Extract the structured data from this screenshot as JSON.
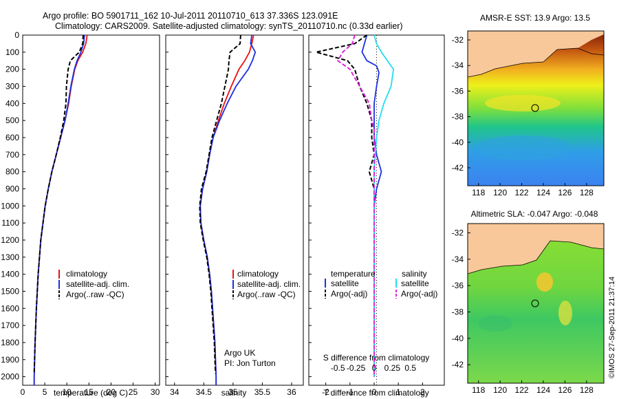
{
  "header": {
    "line1": "Argo profile: BO 5901711_162 10-Jul-2011 20110710_613 37.336S 123.091E",
    "line2": "Climatology: CARS2009. Satellite-adjusted climatology: synTS_20110710.nc (0.33d earlier)"
  },
  "depth_ticks": [
    0,
    100,
    200,
    300,
    400,
    500,
    600,
    700,
    800,
    900,
    1000,
    1100,
    1200,
    1300,
    1400,
    1500,
    1600,
    1700,
    1800,
    1900,
    2000
  ],
  "colors": {
    "red": "#e81010",
    "blue": "#1a2ee0",
    "black": "#000000",
    "cyan": "#22ddee",
    "magenta": "#dd22dd",
    "land": "#f8c89a"
  },
  "legend1": {
    "items": [
      "climatology",
      "satellite-adj. clim.",
      "Argo(..raw -QC)"
    ]
  },
  "legend2": {
    "items": [
      "climatology",
      "satellite-adj. clim.",
      "Argo(..raw -QC)"
    ]
  },
  "legend3": {
    "temp_title": "temperature",
    "sal_title": "salinity",
    "items": [
      "satellite",
      "Argo(-adj)",
      "satellite",
      "Argo(-adj)"
    ]
  },
  "credit": {
    "line1": "Argo UK",
    "line2": "PI: Jon Turton"
  },
  "map1": {
    "title": "AMSR-E SST: 13.9 Argo: 13.5",
    "marker_lon": 123.091,
    "marker_lat": -37.336
  },
  "map2": {
    "title": "Altimetric SLA: -0.047 Argo: -0.048",
    "marker_lon": 123.091,
    "marker_lat": -37.336
  },
  "map_xticks": [
    "118",
    "120",
    "122",
    "124",
    "126",
    "128"
  ],
  "map_yticks": [
    "-32",
    "-34",
    "-36",
    "-38",
    "-40",
    "-42"
  ],
  "watermark": "©IMOS 27-Sep-2011 21:37:14",
  "chart_data": [
    {
      "type": "line",
      "xlabel": "temperature (deg C)",
      "ylabel": "",
      "xlim": [
        0,
        31
      ],
      "ylim": [
        2050,
        0
      ],
      "xticks": [
        "0",
        "5",
        "10",
        "15",
        "20",
        "25",
        "30"
      ],
      "series": [
        {
          "name": "climatology",
          "color": "red",
          "dash": false,
          "depth": [
            0,
            50,
            100,
            150,
            200,
            300,
            400,
            500,
            600,
            700,
            800,
            900,
            1000,
            1200,
            1400,
            1600,
            1800,
            2000,
            2050
          ],
          "values": [
            14.6,
            14.3,
            13.6,
            12.5,
            11.8,
            11.0,
            10.4,
            9.6,
            8.6,
            7.6,
            6.6,
            5.8,
            5.1,
            4.1,
            3.5,
            3.1,
            2.8,
            2.6,
            2.6
          ]
        },
        {
          "name": "satellite-adj. clim.",
          "color": "blue",
          "dash": false,
          "depth": [
            0,
            50,
            100,
            150,
            200,
            300,
            400,
            500,
            600,
            700,
            800,
            900,
            1000,
            1200,
            1400,
            1600,
            1800,
            2000,
            2050
          ],
          "values": [
            14.0,
            13.8,
            13.2,
            12.3,
            11.7,
            10.9,
            10.3,
            9.6,
            8.6,
            7.6,
            6.6,
            5.8,
            5.1,
            4.1,
            3.5,
            3.1,
            2.8,
            2.6,
            2.6
          ]
        },
        {
          "name": "Argo(..raw -QC)",
          "color": "black",
          "dash": true,
          "depth": [
            0,
            50,
            100,
            150,
            200,
            300,
            400,
            500,
            600,
            700,
            800,
            900,
            1000,
            1200,
            1400,
            1600,
            1800,
            1980
          ],
          "values": [
            13.7,
            13.6,
            12.8,
            10.8,
            10.3,
            9.9,
            9.8,
            9.3,
            8.5,
            7.6,
            6.6,
            5.8,
            5.1,
            4.1,
            3.5,
            3.1,
            2.8,
            2.6
          ]
        }
      ]
    },
    {
      "type": "line",
      "xlabel": "salinity",
      "ylabel": "",
      "xlim": [
        33.85,
        36.2
      ],
      "ylim": [
        2050,
        0
      ],
      "xticks": [
        "34",
        "34.5",
        "35",
        "35.5",
        "36"
      ],
      "series": [
        {
          "name": "climatology",
          "color": "red",
          "dash": false,
          "depth": [
            0,
            50,
            100,
            150,
            200,
            300,
            400,
            500,
            600,
            700,
            800,
            900,
            1000,
            1100,
            1200,
            1300,
            1400,
            1500,
            1600,
            1700,
            1800,
            1900,
            2000,
            2050
          ],
          "values": [
            35.35,
            35.32,
            35.28,
            35.2,
            35.1,
            34.97,
            34.85,
            34.75,
            34.66,
            34.6,
            34.55,
            34.48,
            34.44,
            34.45,
            34.5,
            34.56,
            34.6,
            34.63,
            34.65,
            34.67,
            34.69,
            34.7,
            34.71,
            34.71
          ]
        },
        {
          "name": "satellite-adj. clim.",
          "color": "blue",
          "dash": false,
          "depth": [
            0,
            50,
            100,
            150,
            200,
            300,
            400,
            500,
            600,
            700,
            800,
            900,
            1000,
            1100,
            1200,
            1300,
            1400,
            1500,
            1600,
            1700,
            1800,
            1900,
            2000,
            2050
          ],
          "values": [
            35.32,
            35.3,
            35.38,
            35.33,
            35.26,
            35.05,
            34.9,
            34.77,
            34.66,
            34.6,
            34.55,
            34.48,
            34.44,
            34.45,
            34.5,
            34.56,
            34.6,
            34.63,
            34.65,
            34.67,
            34.69,
            34.7,
            34.71,
            34.71
          ]
        },
        {
          "name": "Argo(..raw -QC)",
          "color": "black",
          "dash": true,
          "depth": [
            0,
            50,
            100,
            150,
            200,
            300,
            400,
            500,
            600,
            700,
            800,
            900,
            1000,
            1100,
            1200,
            1300,
            1400,
            1500,
            1600,
            1700,
            1800,
            1900,
            1980
          ],
          "values": [
            35.13,
            35.12,
            34.95,
            34.93,
            34.92,
            34.86,
            34.8,
            34.72,
            34.64,
            34.59,
            34.54,
            34.46,
            34.43,
            34.44,
            34.49,
            34.55,
            34.59,
            34.62,
            34.64,
            34.66,
            34.68,
            34.69,
            34.7
          ]
        }
      ]
    },
    {
      "type": "line",
      "xlabel": "T difference from climatology",
      "ylabel": "",
      "xlim": [
        -2.7,
        2.9
      ],
      "ylim": [
        2050,
        0
      ],
      "xticks_t": [
        "-2",
        "-1",
        "0",
        "1",
        "2"
      ],
      "xticks_t_values": [
        -2,
        -1,
        0,
        1,
        2
      ],
      "xlabel2": "S difference from climatology",
      "xticks_s": [
        "-0.5",
        "-0.25",
        "0",
        "0.25",
        "0.5"
      ],
      "xticks_s_values": [
        -1.5,
        -0.75,
        0,
        0.75,
        1.5
      ],
      "series": [
        {
          "name": "satellite",
          "color": "blue",
          "dash": false,
          "depth": [
            0,
            100,
            150,
            180,
            220,
            300,
            400,
            500,
            600,
            700,
            800,
            900,
            1000,
            1200,
            1400,
            1600,
            1800,
            2000
          ],
          "values": [
            -0.3,
            -0.5,
            -0.3,
            0.1,
            0.2,
            0.1,
            0,
            0,
            0,
            0.1,
            0.3,
            0.1,
            0,
            0,
            0,
            0,
            0,
            0
          ]
        },
        {
          "name": "Argo(-adj)",
          "color": "black",
          "dash": true,
          "depth": [
            0,
            50,
            100,
            150,
            200,
            300,
            400,
            500,
            550,
            600,
            700,
            800,
            850,
            900,
            1000,
            1200,
            1400,
            1600,
            1800,
            2000
          ],
          "values": [
            -0.3,
            -0.8,
            -2.4,
            -1.1,
            -0.8,
            -0.6,
            -0.3,
            -0.1,
            -0.1,
            -0.1,
            0,
            -0.2,
            -0.1,
            0,
            0,
            0,
            0,
            0,
            0,
            0
          ]
        },
        {
          "name": "satellite",
          "color": "cyan",
          "dash": false,
          "depth": [
            0,
            50,
            100,
            200,
            300,
            400,
            500,
            600,
            700,
            800,
            1000,
            1200,
            1400,
            1600,
            1800,
            2000
          ],
          "values": [
            0,
            0.1,
            0.3,
            0.8,
            0.7,
            0.4,
            0.2,
            0.1,
            0.05,
            0,
            0,
            0,
            0,
            0,
            0,
            0
          ]
        },
        {
          "name": "Argo(-adj)",
          "color": "magenta",
          "dash": true,
          "depth": [
            0,
            50,
            100,
            150,
            200,
            300,
            400,
            500,
            550,
            600,
            700,
            800,
            1000,
            1200,
            1400,
            1600,
            1800,
            2000
          ],
          "values": [
            -0.8,
            -0.9,
            -1.3,
            -1.5,
            -1.0,
            -0.6,
            -0.2,
            -0.1,
            0,
            0,
            0,
            0,
            0,
            0,
            0,
            0,
            0,
            0
          ]
        }
      ]
    }
  ]
}
